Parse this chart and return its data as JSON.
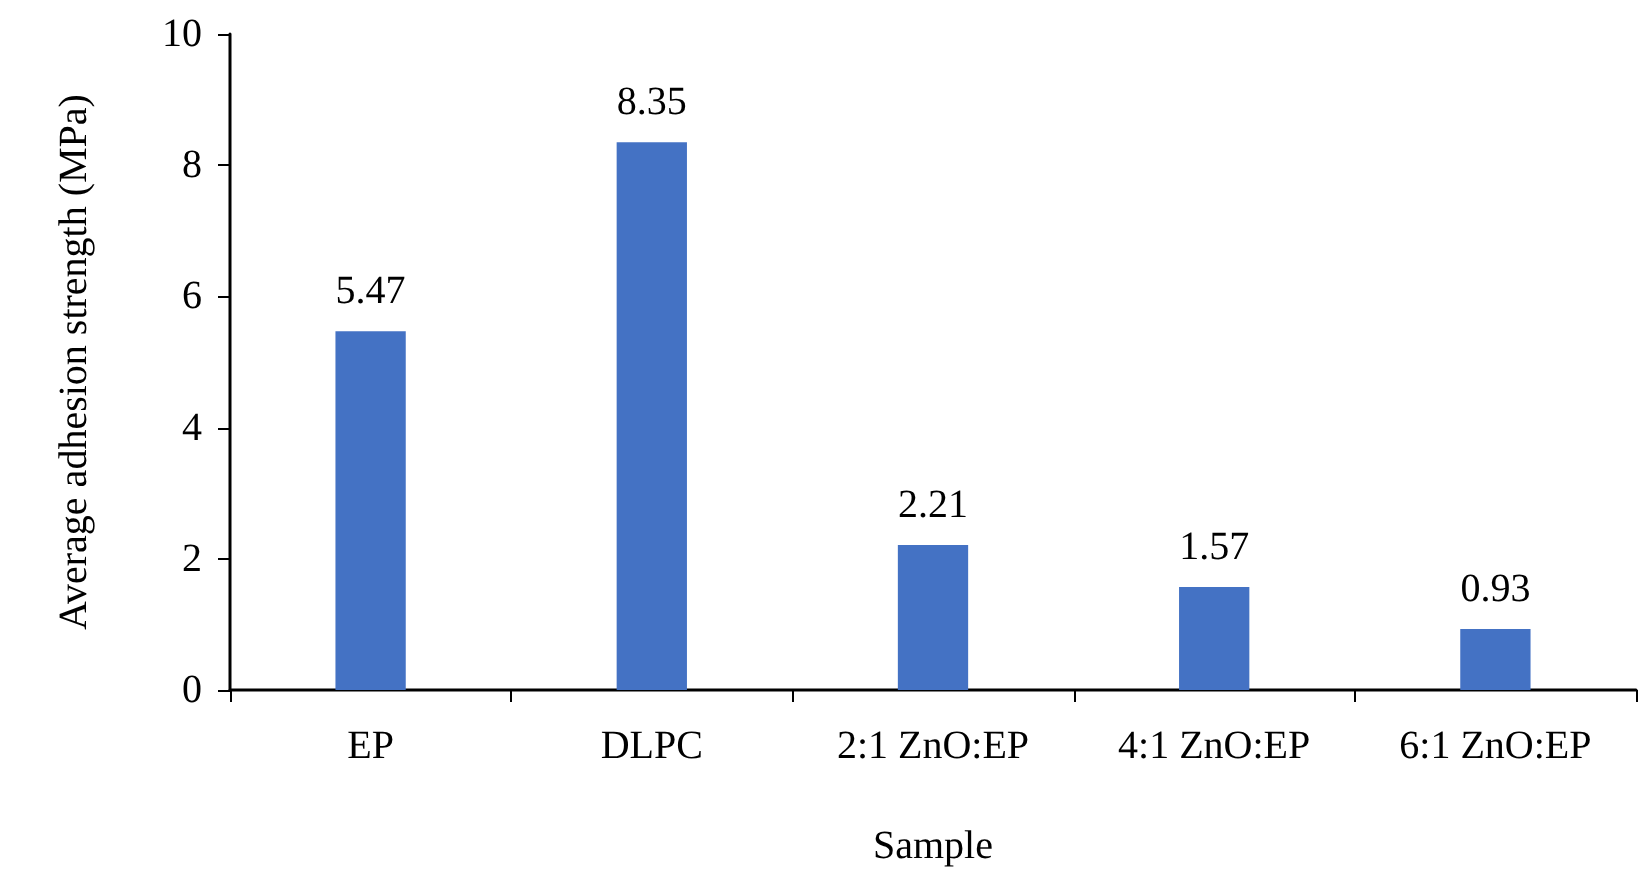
{
  "chart_data": {
    "type": "bar",
    "xlabel": "Sample",
    "ylabel": "Average adhesion strength (MPa)",
    "categories": [
      "EP",
      "DLPC",
      "2:1 ZnO:EP",
      "4:1 ZnO:EP",
      "6:1 ZnO:EP"
    ],
    "values": [
      5.47,
      8.35,
      2.21,
      1.57,
      0.93
    ],
    "color": "#4472c4",
    "ylim": [
      0,
      10
    ],
    "yticks": [
      0,
      2,
      4,
      6,
      8,
      10
    ],
    "grid": false,
    "data_labels": true
  }
}
